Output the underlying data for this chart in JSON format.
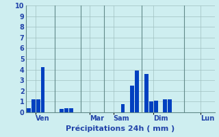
{
  "xlabel": "Précipitations 24h ( mm )",
  "background_color": "#ceeef0",
  "plot_bg_color": "#ceeef0",
  "grid_color": "#a0c0c0",
  "bar_color_dark": "#0040c0",
  "bar_color_light": "#3080e0",
  "ylim": [
    0,
    10
  ],
  "yticks": [
    0,
    1,
    2,
    3,
    4,
    5,
    6,
    7,
    8,
    9,
    10
  ],
  "n_slots": 40,
  "values": [
    0.4,
    1.2,
    1.2,
    4.2,
    0.0,
    0.0,
    0.0,
    0.3,
    0.4,
    0.4,
    0.0,
    0.0,
    0.0,
    0.0,
    0.0,
    0.0,
    0.0,
    0.0,
    0.0,
    0.0,
    0.8,
    0.0,
    2.5,
    3.9,
    0.0,
    3.6,
    1.0,
    1.1,
    0.0,
    1.2,
    1.2,
    0.0,
    0.0,
    0.0,
    0.0,
    0.0,
    0.0,
    0.0,
    0.0,
    0.0
  ],
  "day_labels": [
    "Ven",
    "Mar",
    "Sam",
    "Dim",
    "Lun"
  ],
  "day_tick_positions": [
    1.5,
    13.0,
    18.0,
    26.5,
    36.5
  ],
  "vline_positions": [
    5.5,
    11.0,
    16.0,
    24.0,
    33.0
  ]
}
